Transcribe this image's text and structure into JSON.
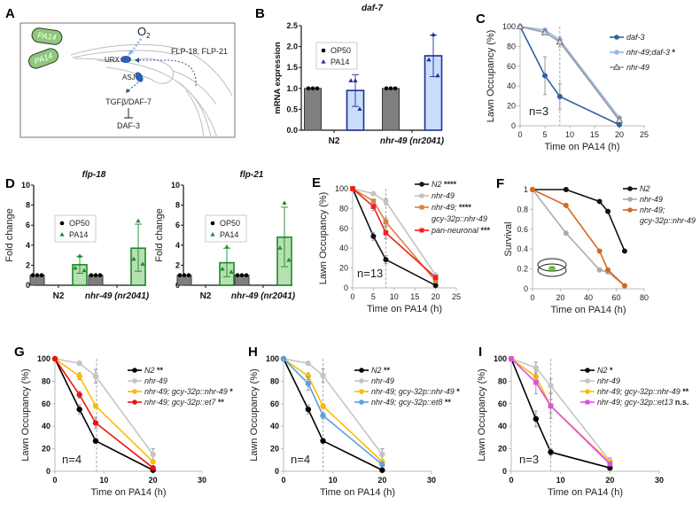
{
  "panel_labels": [
    "A",
    "B",
    "C",
    "D",
    "E",
    "F",
    "G",
    "H",
    "I"
  ],
  "diagram": {
    "bacteria": [
      "PA14",
      "PA14"
    ],
    "oxygen": "O",
    "oxygen_sub": "2",
    "neurons": [
      "URX",
      "ASJ"
    ],
    "neuropeptides": "FLP-18, FLP-21",
    "pathway": "TGFβ/DAF-7",
    "target": "DAF-3"
  },
  "chart_data": [
    {
      "id": "B",
      "type": "bar",
      "title": "daf-7",
      "ylabel": "mRNA expression",
      "xlabel": "",
      "ylim": [
        0,
        2.5
      ],
      "yticks": [
        "0.0",
        "0.5",
        "1.0",
        "1.5",
        "2.0",
        "2.5"
      ],
      "yticks_values": [
        0,
        0.5,
        1.0,
        1.5,
        2.0,
        2.5
      ],
      "categories": [
        "N2",
        "nhr-49 (nr2041)"
      ],
      "legend": {
        "position": "top-left",
        "entries": [
          {
            "name": "OP50",
            "marker": "circle"
          },
          {
            "name": "PA14",
            "marker": "triangle"
          }
        ]
      },
      "series": [
        {
          "name": "OP50",
          "color": "#7f7f7f",
          "edge": "#3a3a3a",
          "values": [
            1.0,
            1.0
          ],
          "err_hi": [
            1.0,
            1.0
          ],
          "err_lo": [
            1.0,
            1.0
          ],
          "points": [
            [
              1,
              1,
              1
            ],
            [
              1,
              1,
              1
            ]
          ]
        },
        {
          "name": "PA14",
          "color": "#c9defa",
          "edge": "#1f2d9a",
          "values": [
            0.95,
            1.78
          ],
          "err_hi": [
            1.33,
            2.28
          ],
          "err_lo": [
            0.57,
            1.28
          ],
          "points": [
            [
              1.18,
              1.18,
              0.5
            ],
            [
              2.28,
              1.68,
              1.3
            ]
          ]
        }
      ]
    },
    {
      "id": "C",
      "type": "line",
      "xlabel": "Time on PA14 (h)",
      "ylabel": "Lawn Occupancy (%)",
      "xlim": [
        0,
        25
      ],
      "ylim": [
        0,
        100
      ],
      "xticks": [
        0,
        5,
        10,
        15,
        20,
        25
      ],
      "yticks": [
        0,
        20,
        40,
        60,
        80,
        100
      ],
      "vline": 8,
      "annotation": "n=3",
      "legend": {
        "position": "right"
      },
      "x": [
        0,
        5,
        8,
        20
      ],
      "series": [
        {
          "name": "daf-3",
          "sig": "",
          "color": "#2f5fa8",
          "marker": "circle",
          "values": [
            100,
            50.5,
            29.5,
            1
          ],
          "err": [
            0,
            19,
            13,
            0
          ]
        },
        {
          "name": "nhr-49;daf-3",
          "sig": "*",
          "color": "#93b6e6",
          "marker": "circle",
          "values": [
            100,
            96.5,
            86.5,
            8
          ],
          "err": [
            0,
            0,
            0,
            0
          ]
        },
        {
          "name": "nhr-49",
          "sig": "",
          "color": "#9a9a9a",
          "marker": "triangle-open",
          "values": [
            100,
            94,
            84.5,
            5.5
          ],
          "err": [
            0,
            0,
            5,
            0
          ]
        }
      ]
    },
    {
      "id": "D1",
      "type": "bar",
      "title": "flp-18",
      "ylabel": "Fold change",
      "ylim": [
        0,
        10
      ],
      "yticks": [
        "0",
        "2",
        "4",
        "6",
        "8",
        "10"
      ],
      "yticks_values": [
        0,
        2,
        4,
        6,
        8,
        10
      ],
      "categories": [
        "N2",
        "nhr-49 (nr2041)"
      ],
      "legend": {
        "position": "top-left",
        "entries": [
          {
            "name": "OP50",
            "marker": "circle"
          },
          {
            "name": "PA14",
            "marker": "triangle"
          }
        ]
      },
      "series": [
        {
          "name": "OP50",
          "color": "#7f7f7f",
          "edge": "#3a3a3a",
          "values": [
            1.0,
            1.0
          ],
          "err_hi": [
            1.0,
            1.0
          ],
          "err_lo": [
            1.0,
            1.0
          ],
          "points": [
            [
              1,
              1,
              1
            ],
            [
              1,
              1,
              1
            ]
          ]
        },
        {
          "name": "PA14",
          "color": "#b5e0b0",
          "edge": "#1f8a2a",
          "values": [
            2.05,
            3.7
          ],
          "err_hi": [
            2.9,
            6.1
          ],
          "err_lo": [
            1.2,
            1.4
          ],
          "points": [
            [
              2.9,
              1.7,
              1.45
            ],
            [
              6.4,
              2.6,
              2.1
            ]
          ]
        }
      ]
    },
    {
      "id": "D2",
      "type": "bar",
      "title": "flp-21",
      "ylabel": "Fold change",
      "ylim": [
        0,
        10
      ],
      "yticks": [
        "0",
        "2",
        "4",
        "6",
        "8",
        "10"
      ],
      "yticks_values": [
        0,
        2,
        4,
        6,
        8,
        10
      ],
      "categories": [
        "N2",
        "nhr-49 (nr2041)"
      ],
      "legend": {
        "position": "top-left",
        "entries": [
          {
            "name": "OP50",
            "marker": "circle"
          },
          {
            "name": "PA14",
            "marker": "triangle"
          }
        ]
      },
      "series": [
        {
          "name": "OP50",
          "color": "#7f7f7f",
          "edge": "#3a3a3a",
          "values": [
            1.0,
            1.0
          ],
          "err_hi": [
            1.0,
            1.0
          ],
          "err_lo": [
            1.0,
            1.0
          ],
          "points": [
            [
              1,
              1,
              1
            ],
            [
              1,
              1,
              1
            ]
          ]
        },
        {
          "name": "PA14",
          "color": "#b5e0b0",
          "edge": "#1f8a2a",
          "values": [
            2.25,
            4.8
          ],
          "err_hi": [
            3.7,
            7.8
          ],
          "err_lo": [
            0.85,
            1.85
          ],
          "points": [
            [
              3.8,
              1.6,
              1.3
            ],
            [
              8.2,
              3.7,
              2.5
            ]
          ]
        }
      ]
    },
    {
      "id": "E",
      "type": "line",
      "xlabel": "Time on PA14 (h)",
      "ylabel": "Lawn Occupancy (%)",
      "xlim": [
        0,
        25
      ],
      "ylim": [
        0,
        100
      ],
      "xticks": [
        0,
        5,
        10,
        15,
        20,
        25
      ],
      "yticks": [
        0,
        20,
        40,
        60,
        80,
        100
      ],
      "vline": 8,
      "annotation": "n=13",
      "legend": {
        "position": "top-right"
      },
      "x": [
        0,
        5,
        8,
        20
      ],
      "series": [
        {
          "name": "N2",
          "sig": "****",
          "color": "#111111",
          "marker": "circle",
          "values": [
            100,
            52,
            28.5,
            2.5
          ],
          "err": [
            0,
            4,
            4,
            0
          ]
        },
        {
          "name": "nhr-49",
          "sig": "",
          "color": "#c2c2c2",
          "marker": "circle",
          "values": [
            100,
            95,
            87,
            13
          ],
          "err": [
            0,
            0,
            3,
            0
          ]
        },
        {
          "name": "nhr-49;",
          "name2": "gcy-32p::nhr-49",
          "sig": "****",
          "color": "#d9813a",
          "marker": "square",
          "values": [
            100,
            87.5,
            66.5,
            7
          ],
          "err": [
            0,
            0,
            4,
            0
          ]
        },
        {
          "name": "pan-neuronal",
          "sig": "***",
          "color": "#f02020",
          "marker": "square",
          "values": [
            100,
            82,
            55.5,
            10.5
          ],
          "err": [
            0,
            4,
            6,
            0
          ]
        }
      ]
    },
    {
      "id": "F",
      "type": "line",
      "xlabel": "Time on PA14 (h)",
      "ylabel": "Survival",
      "xlim": [
        0,
        80
      ],
      "ylim": [
        0,
        1
      ],
      "xticks": [
        0,
        20,
        40,
        60,
        80
      ],
      "yticks": [
        0,
        0.2,
        0.4,
        0.6,
        0.8,
        1
      ],
      "ytick_labels": [
        "0",
        "0.2",
        "0.4",
        "0.6",
        "0.8",
        "1"
      ],
      "legend": {
        "position": "top-right"
      },
      "series": [
        {
          "name": "N2",
          "color": "#111111",
          "marker": "circle",
          "x": [
            0,
            24,
            48,
            54,
            66
          ],
          "values": [
            1,
            1,
            0.88,
            0.78,
            0.38
          ]
        },
        {
          "name": "nhr-49",
          "color": "#ababab",
          "marker": "circle",
          "x": [
            0,
            24,
            48,
            54,
            66
          ],
          "values": [
            1,
            0.56,
            0.19,
            0.17,
            0.03
          ]
        },
        {
          "name": "nhr-49;",
          "name2": "gcy-32p::nhr-49",
          "color": "#d2691e",
          "marker": "circle",
          "x": [
            0,
            24,
            48,
            54,
            66
          ],
          "values": [
            1,
            0.84,
            0.38,
            0.19,
            0.03
          ]
        }
      ]
    },
    {
      "id": "G",
      "type": "line",
      "xlabel": "Time on PA14 (h)",
      "ylabel": "Lawn Occupancy (%)",
      "xlim": [
        0,
        30
      ],
      "ylim": [
        0,
        100
      ],
      "xticks": [
        0,
        10,
        20,
        30
      ],
      "yticks": [
        0,
        20,
        40,
        60,
        80,
        100
      ],
      "vline": 8.5,
      "annotation": "n=4",
      "legend": {
        "position": "top-right"
      },
      "x": [
        0,
        5,
        8.3,
        20
      ],
      "series": [
        {
          "name": "N2",
          "sig": "**",
          "color": "#000000",
          "marker": "circle",
          "values": [
            100,
            55,
            27,
            1
          ],
          "err": [
            0,
            4,
            2,
            0
          ]
        },
        {
          "name": "nhr-49",
          "sig": "",
          "color": "#c4c4c4",
          "marker": "circle",
          "values": [
            100,
            96,
            84.5,
            15
          ],
          "err": [
            0,
            0,
            6,
            5
          ]
        },
        {
          "name": "nhr-49; gcy-32p::nhr-49",
          "sig": "*",
          "color": "#ffbb00",
          "marker": "circle",
          "values": [
            100,
            84.5,
            58,
            8.5
          ],
          "err": [
            0,
            3,
            2,
            0
          ]
        },
        {
          "name": "nhr-49; gcy-32p::et7",
          "sig": "**",
          "color": "#ee1111",
          "marker": "circle",
          "values": [
            100,
            68,
            43,
            3
          ],
          "err": [
            0,
            3,
            5,
            0
          ]
        }
      ]
    },
    {
      "id": "H",
      "type": "line",
      "xlabel": "Time on PA14 (h)",
      "ylabel": "Lawn Occupancy (%)",
      "xlim": [
        0,
        30
      ],
      "ylim": [
        0,
        100
      ],
      "xticks": [
        0,
        10,
        20,
        30
      ],
      "yticks": [
        0,
        20,
        40,
        60,
        80,
        100
      ],
      "vline": 8,
      "annotation": "n=4",
      "legend": {
        "position": "top-right"
      },
      "x": [
        0,
        5,
        8,
        20
      ],
      "series": [
        {
          "name": "N2",
          "sig": "**",
          "color": "#000000",
          "marker": "circle",
          "values": [
            100,
            55,
            27,
            1
          ],
          "err": [
            0,
            4,
            2,
            0
          ]
        },
        {
          "name": "nhr-49",
          "sig": "",
          "color": "#c4c4c4",
          "marker": "circle",
          "values": [
            100,
            96,
            85,
            15
          ],
          "err": [
            0,
            0,
            6,
            5
          ]
        },
        {
          "name": "nhr-49; gcy-32p::nhr-49",
          "sig": "*",
          "color": "#ffbb00",
          "marker": "circle",
          "values": [
            100,
            84.5,
            58,
            8.5
          ],
          "err": [
            0,
            3,
            2,
            0
          ]
        },
        {
          "name": "nhr-49; gcy-32p::et8",
          "sig": "**",
          "color": "#5aa0e0",
          "marker": "circle",
          "values": [
            100,
            78,
            49.5,
            6
          ],
          "err": [
            0,
            6,
            3,
            0
          ]
        }
      ]
    },
    {
      "id": "I",
      "type": "line",
      "xlabel": "Time on PA14 (h)",
      "ylabel": "Lawn Occupancy (%)",
      "xlim": [
        0,
        30
      ],
      "ylim": [
        0,
        100
      ],
      "xticks": [
        0,
        10,
        20,
        30
      ],
      "yticks": [
        0,
        20,
        40,
        60,
        80,
        100
      ],
      "vline": 8,
      "annotation": "n=3",
      "legend": {
        "position": "top-right"
      },
      "x": [
        0,
        5,
        8,
        20
      ],
      "series": [
        {
          "name": "N2",
          "sig": "*",
          "color": "#000000",
          "marker": "circle",
          "values": [
            100,
            46.5,
            17,
            3
          ],
          "err": [
            0,
            7,
            3,
            0
          ]
        },
        {
          "name": "nhr-49",
          "sig": "",
          "color": "#c4c4c4",
          "marker": "circle",
          "values": [
            100,
            92,
            76,
            9
          ],
          "err": [
            0,
            5,
            6,
            3
          ]
        },
        {
          "name": "nhr-49; gcy-32p::nhr-49",
          "sig": "**",
          "color": "#ffbb00",
          "marker": "circle",
          "values": [
            100,
            84,
            58,
            8
          ],
          "err": [
            0,
            0,
            6,
            0
          ]
        },
        {
          "name": "nhr-49; gcy-32p::et13",
          "sig": "n.s.",
          "color": "#e04de6",
          "marker": "square",
          "values": [
            100,
            79,
            58,
            6.5
          ],
          "err": [
            0,
            10,
            11,
            0
          ]
        }
      ]
    }
  ]
}
